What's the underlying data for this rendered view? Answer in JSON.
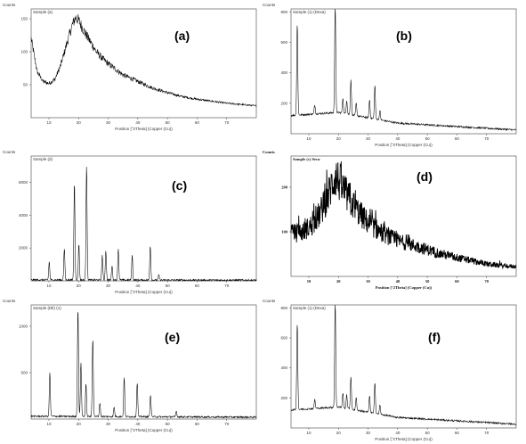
{
  "figure": {
    "panels": [
      {
        "id": "a",
        "letter": "(a)",
        "counts_label": "Counts",
        "sample_label": "Sample (a)",
        "xlabel": "Position [°2Theta] (Copper (Cu))",
        "xticks": [
          10,
          20,
          30,
          40,
          50,
          60,
          70
        ],
        "yticks": [
          50,
          100,
          150
        ]
      },
      {
        "id": "b",
        "letter": "(b)",
        "counts_label": "Counts",
        "sample_label": "Sample (1) (Dexa)",
        "xlabel": "Position [°2Theta] (Copper (Cu))",
        "xticks": [
          10,
          20,
          30,
          40,
          50,
          60,
          70
        ],
        "yticks": [
          200,
          400,
          600,
          800
        ]
      },
      {
        "id": "c",
        "letter": "(c)",
        "counts_label": "Counts",
        "sample_label": "Sample (d)",
        "xlabel": "Position [°2Theta] (Copper (Cu))",
        "xticks": [
          10,
          20,
          30,
          40,
          50,
          60,
          70
        ],
        "yticks": [
          2000,
          4000,
          6000
        ]
      },
      {
        "id": "d",
        "letter": "(d)",
        "counts_label": "Counts",
        "sample_label": "Sample (c) Secu",
        "xlabel": "Position [°2Theta] (Copper (Cu))",
        "xticks": [
          10,
          20,
          30,
          40,
          50,
          60,
          70
        ],
        "yticks": [
          100,
          200
        ]
      },
      {
        "id": "e",
        "letter": "(e)",
        "counts_label": "Counts",
        "sample_label": "Sample (Dlt) (1)",
        "xlabel": "Position [°2Theta] (Copper (Cu))",
        "xticks": [
          10,
          20,
          30,
          40,
          50,
          60,
          70
        ],
        "yticks": [
          500,
          1000
        ]
      },
      {
        "id": "f",
        "letter": "(f)",
        "counts_label": "Counts",
        "sample_label": "Sample (1) (Dexa)",
        "xlabel": "Position [°2Theta] (Copper (Cu))",
        "xticks": [
          10,
          20,
          30,
          40,
          50,
          60,
          70
        ],
        "yticks": [
          200,
          400,
          600,
          800
        ]
      }
    ]
  },
  "chart_data": [
    {
      "type": "line",
      "title": "(a)",
      "xlabel": "Position [°2Theta] (Copper (Cu))",
      "ylabel": "Counts",
      "xlim": [
        4,
        80
      ],
      "ylim": [
        0,
        165
      ],
      "grid": false,
      "profile": "amorphous_halo",
      "x": [
        4,
        6,
        8,
        10,
        12,
        14,
        16,
        18,
        19,
        20,
        22,
        24,
        26,
        28,
        30,
        35,
        40,
        45,
        50,
        55,
        60,
        65,
        70,
        75,
        80
      ],
      "y": [
        120,
        70,
        55,
        52,
        58,
        80,
        112,
        142,
        152,
        148,
        130,
        115,
        100,
        90,
        82,
        65,
        55,
        45,
        38,
        32,
        28,
        25,
        22,
        20,
        18
      ]
    },
    {
      "type": "line",
      "title": "(b)",
      "xlabel": "Position [°2Theta] (Copper (Cu))",
      "ylabel": "Counts",
      "xlim": [
        4,
        80
      ],
      "ylim": [
        0,
        820
      ],
      "grid": false,
      "baseline": [
        {
          "x": 4,
          "y": 120
        },
        {
          "x": 20,
          "y": 140
        },
        {
          "x": 40,
          "y": 70
        },
        {
          "x": 80,
          "y": 25
        }
      ],
      "peaks": [
        [
          6.1,
          600
        ],
        [
          12,
          60
        ],
        [
          18.9,
          730
        ],
        [
          21.5,
          100
        ],
        [
          22.8,
          90
        ],
        [
          24.2,
          230
        ],
        [
          26,
          80
        ],
        [
          30.5,
          120
        ],
        [
          32.3,
          220
        ],
        [
          34,
          60
        ]
      ]
    },
    {
      "type": "line",
      "title": "(c)",
      "xlabel": "Position [°2Theta] (Copper (Cu))",
      "ylabel": "Counts",
      "xlim": [
        4,
        80
      ],
      "ylim": [
        0,
        7600
      ],
      "grid": false,
      "baseline": [
        {
          "x": 4,
          "y": 60
        },
        {
          "x": 80,
          "y": 40
        }
      ],
      "peaks": [
        [
          10.1,
          1100
        ],
        [
          15.2,
          1900
        ],
        [
          18.6,
          6000
        ],
        [
          20.1,
          2200
        ],
        [
          22.7,
          7000
        ],
        [
          28,
          1500
        ],
        [
          29.2,
          1800
        ],
        [
          31.3,
          900
        ],
        [
          33.4,
          1900
        ],
        [
          38.1,
          1500
        ],
        [
          44.2,
          2100
        ],
        [
          47.1,
          300
        ]
      ]
    },
    {
      "type": "line",
      "title": "(d)",
      "xlabel": "Position [°2Theta] (Copper (Cu))",
      "ylabel": "Counts",
      "xlim": [
        4,
        80
      ],
      "ylim": [
        0,
        270
      ],
      "grid": false,
      "profile": "amorphous_halo",
      "x": [
        4,
        8,
        12,
        16,
        18,
        19,
        20,
        22,
        24,
        26,
        28,
        30,
        35,
        40,
        45,
        50,
        55,
        60,
        65,
        70,
        75,
        80
      ],
      "y": [
        95,
        100,
        120,
        170,
        210,
        225,
        215,
        190,
        170,
        150,
        135,
        120,
        95,
        80,
        70,
        60,
        50,
        42,
        35,
        28,
        24,
        22
      ]
    },
    {
      "type": "line",
      "title": "(e)",
      "xlabel": "Position [°2Theta] (Copper (Cu))",
      "ylabel": "Counts",
      "xlim": [
        4,
        80
      ],
      "ylim": [
        0,
        1230
      ],
      "grid": false,
      "baseline": [
        {
          "x": 4,
          "y": 30
        },
        {
          "x": 80,
          "y": 20
        }
      ],
      "peaks": [
        [
          10.3,
          470
        ],
        [
          19.8,
          1170
        ],
        [
          20.8,
          580
        ],
        [
          22.5,
          350
        ],
        [
          24.8,
          850
        ],
        [
          27.2,
          150
        ],
        [
          32,
          100
        ],
        [
          35.4,
          430
        ],
        [
          39.8,
          370
        ],
        [
          44.3,
          240
        ],
        [
          53,
          60
        ]
      ]
    },
    {
      "type": "line",
      "title": "(f)",
      "xlabel": "Position [°2Theta] (Copper (Cu))",
      "ylabel": "Counts",
      "xlim": [
        4,
        80
      ],
      "ylim": [
        0,
        820
      ],
      "grid": false,
      "baseline": [
        {
          "x": 4,
          "y": 120
        },
        {
          "x": 20,
          "y": 140
        },
        {
          "x": 40,
          "y": 70
        },
        {
          "x": 80,
          "y": 25
        }
      ],
      "peaks": [
        [
          6.1,
          580
        ],
        [
          12,
          60
        ],
        [
          18.9,
          710
        ],
        [
          21.5,
          100
        ],
        [
          22.8,
          90
        ],
        [
          24.2,
          220
        ],
        [
          26,
          80
        ],
        [
          30.5,
          110
        ],
        [
          32.3,
          210
        ],
        [
          34,
          60
        ]
      ]
    }
  ]
}
